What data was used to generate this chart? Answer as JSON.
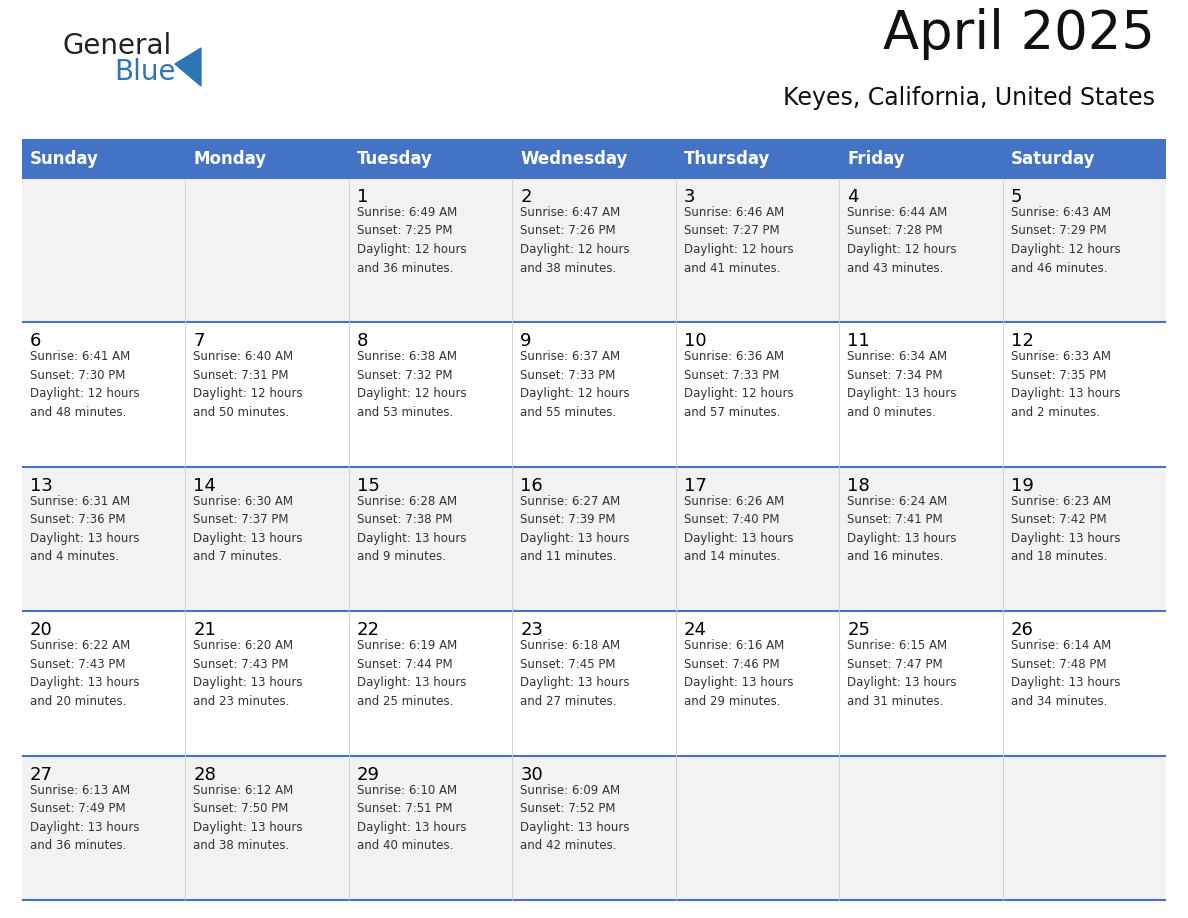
{
  "title": "April 2025",
  "subtitle": "Keyes, California, United States",
  "header_bg": "#4472C4",
  "header_text_color": "#FFFFFF",
  "row_bg_odd": "#F2F2F2",
  "row_bg_even": "#FFFFFF",
  "cell_border_color": "#4472C4",
  "day_number_color": "#000000",
  "day_info_color": "#333333",
  "days_of_week": [
    "Sunday",
    "Monday",
    "Tuesday",
    "Wednesday",
    "Thursday",
    "Friday",
    "Saturday"
  ],
  "weeks": [
    [
      {
        "day": "",
        "info": ""
      },
      {
        "day": "",
        "info": ""
      },
      {
        "day": "1",
        "info": "Sunrise: 6:49 AM\nSunset: 7:25 PM\nDaylight: 12 hours\nand 36 minutes."
      },
      {
        "day": "2",
        "info": "Sunrise: 6:47 AM\nSunset: 7:26 PM\nDaylight: 12 hours\nand 38 minutes."
      },
      {
        "day": "3",
        "info": "Sunrise: 6:46 AM\nSunset: 7:27 PM\nDaylight: 12 hours\nand 41 minutes."
      },
      {
        "day": "4",
        "info": "Sunrise: 6:44 AM\nSunset: 7:28 PM\nDaylight: 12 hours\nand 43 minutes."
      },
      {
        "day": "5",
        "info": "Sunrise: 6:43 AM\nSunset: 7:29 PM\nDaylight: 12 hours\nand 46 minutes."
      }
    ],
    [
      {
        "day": "6",
        "info": "Sunrise: 6:41 AM\nSunset: 7:30 PM\nDaylight: 12 hours\nand 48 minutes."
      },
      {
        "day": "7",
        "info": "Sunrise: 6:40 AM\nSunset: 7:31 PM\nDaylight: 12 hours\nand 50 minutes."
      },
      {
        "day": "8",
        "info": "Sunrise: 6:38 AM\nSunset: 7:32 PM\nDaylight: 12 hours\nand 53 minutes."
      },
      {
        "day": "9",
        "info": "Sunrise: 6:37 AM\nSunset: 7:33 PM\nDaylight: 12 hours\nand 55 minutes."
      },
      {
        "day": "10",
        "info": "Sunrise: 6:36 AM\nSunset: 7:33 PM\nDaylight: 12 hours\nand 57 minutes."
      },
      {
        "day": "11",
        "info": "Sunrise: 6:34 AM\nSunset: 7:34 PM\nDaylight: 13 hours\nand 0 minutes."
      },
      {
        "day": "12",
        "info": "Sunrise: 6:33 AM\nSunset: 7:35 PM\nDaylight: 13 hours\nand 2 minutes."
      }
    ],
    [
      {
        "day": "13",
        "info": "Sunrise: 6:31 AM\nSunset: 7:36 PM\nDaylight: 13 hours\nand 4 minutes."
      },
      {
        "day": "14",
        "info": "Sunrise: 6:30 AM\nSunset: 7:37 PM\nDaylight: 13 hours\nand 7 minutes."
      },
      {
        "day": "15",
        "info": "Sunrise: 6:28 AM\nSunset: 7:38 PM\nDaylight: 13 hours\nand 9 minutes."
      },
      {
        "day": "16",
        "info": "Sunrise: 6:27 AM\nSunset: 7:39 PM\nDaylight: 13 hours\nand 11 minutes."
      },
      {
        "day": "17",
        "info": "Sunrise: 6:26 AM\nSunset: 7:40 PM\nDaylight: 13 hours\nand 14 minutes."
      },
      {
        "day": "18",
        "info": "Sunrise: 6:24 AM\nSunset: 7:41 PM\nDaylight: 13 hours\nand 16 minutes."
      },
      {
        "day": "19",
        "info": "Sunrise: 6:23 AM\nSunset: 7:42 PM\nDaylight: 13 hours\nand 18 minutes."
      }
    ],
    [
      {
        "day": "20",
        "info": "Sunrise: 6:22 AM\nSunset: 7:43 PM\nDaylight: 13 hours\nand 20 minutes."
      },
      {
        "day": "21",
        "info": "Sunrise: 6:20 AM\nSunset: 7:43 PM\nDaylight: 13 hours\nand 23 minutes."
      },
      {
        "day": "22",
        "info": "Sunrise: 6:19 AM\nSunset: 7:44 PM\nDaylight: 13 hours\nand 25 minutes."
      },
      {
        "day": "23",
        "info": "Sunrise: 6:18 AM\nSunset: 7:45 PM\nDaylight: 13 hours\nand 27 minutes."
      },
      {
        "day": "24",
        "info": "Sunrise: 6:16 AM\nSunset: 7:46 PM\nDaylight: 13 hours\nand 29 minutes."
      },
      {
        "day": "25",
        "info": "Sunrise: 6:15 AM\nSunset: 7:47 PM\nDaylight: 13 hours\nand 31 minutes."
      },
      {
        "day": "26",
        "info": "Sunrise: 6:14 AM\nSunset: 7:48 PM\nDaylight: 13 hours\nand 34 minutes."
      }
    ],
    [
      {
        "day": "27",
        "info": "Sunrise: 6:13 AM\nSunset: 7:49 PM\nDaylight: 13 hours\nand 36 minutes."
      },
      {
        "day": "28",
        "info": "Sunrise: 6:12 AM\nSunset: 7:50 PM\nDaylight: 13 hours\nand 38 minutes."
      },
      {
        "day": "29",
        "info": "Sunrise: 6:10 AM\nSunset: 7:51 PM\nDaylight: 13 hours\nand 40 minutes."
      },
      {
        "day": "30",
        "info": "Sunrise: 6:09 AM\nSunset: 7:52 PM\nDaylight: 13 hours\nand 42 minutes."
      },
      {
        "day": "",
        "info": ""
      },
      {
        "day": "",
        "info": ""
      },
      {
        "day": "",
        "info": ""
      }
    ]
  ],
  "logo_general_color": "#222222",
  "logo_blue_color": "#2E75B6",
  "logo_triangle_color": "#2E75B6"
}
